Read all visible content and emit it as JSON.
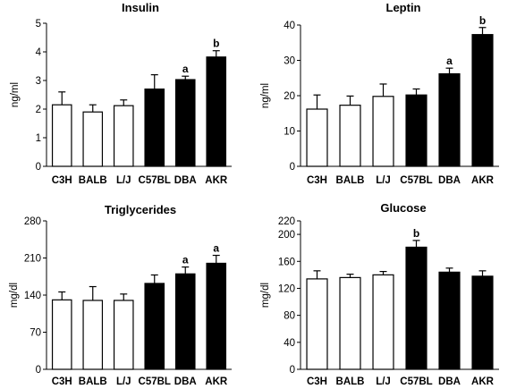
{
  "chart_data": [
    {
      "type": "bar",
      "title": "Insulin",
      "ylabel": "ng/ml",
      "ylim": [
        0,
        5
      ],
      "yticks": [
        "0",
        "1",
        "2",
        "3",
        "4",
        "5"
      ],
      "categories": [
        "C3H",
        "BALB",
        "L/J",
        "C57BL",
        "DBA",
        "AKR"
      ],
      "values": [
        2.15,
        1.9,
        2.12,
        2.7,
        3.03,
        3.82
      ],
      "errors": [
        0.45,
        0.25,
        0.2,
        0.5,
        0.12,
        0.22
      ],
      "fills": [
        "#ffffff",
        "#ffffff",
        "#ffffff",
        "#000000",
        "#000000",
        "#000000"
      ],
      "annotations": [
        "",
        "",
        "",
        "",
        "a",
        "b"
      ]
    },
    {
      "type": "bar",
      "title": "Leptin",
      "ylabel": "ng/ml",
      "ylim": [
        0,
        40
      ],
      "yticks": [
        "0",
        "10",
        "20",
        "30",
        "40"
      ],
      "categories": [
        "C3H",
        "BALB",
        "L/J",
        "C57BL",
        "DBA",
        "AKR"
      ],
      "values": [
        16.2,
        17.3,
        19.8,
        20.2,
        26.2,
        37.3
      ],
      "errors": [
        4.0,
        2.6,
        3.5,
        1.7,
        1.6,
        2.0
      ],
      "fills": [
        "#ffffff",
        "#ffffff",
        "#ffffff",
        "#000000",
        "#000000",
        "#000000"
      ],
      "annotations": [
        "",
        "",
        "",
        "",
        "a",
        "b"
      ]
    },
    {
      "type": "bar",
      "title": "Triglycerides",
      "ylabel": "mg/dl",
      "ylim": [
        0,
        280
      ],
      "yticks": [
        "0",
        "70",
        "140",
        "210",
        "280"
      ],
      "categories": [
        "C3H",
        "BALB",
        "L/J",
        "C57BL",
        "DBA",
        "AKR"
      ],
      "values": [
        131,
        130,
        130,
        162,
        180,
        200
      ],
      "errors": [
        15,
        26,
        12,
        16,
        13,
        15
      ],
      "fills": [
        "#ffffff",
        "#ffffff",
        "#ffffff",
        "#000000",
        "#000000",
        "#000000"
      ],
      "annotations": [
        "",
        "",
        "",
        "",
        "a",
        "a"
      ]
    },
    {
      "type": "bar",
      "title": "Glucose",
      "ylabel": "mg/dl",
      "ylim": [
        0,
        220
      ],
      "yticks": [
        "0",
        "40",
        "80",
        "120",
        "160",
        "200",
        "220"
      ],
      "categories": [
        "C3H",
        "BALB",
        "L/J",
        "C57BL",
        "DBA",
        "AKR"
      ],
      "values": [
        134,
        136,
        140,
        181,
        144,
        138
      ],
      "errors": [
        12,
        5,
        5,
        10,
        6,
        8
      ],
      "fills": [
        "#ffffff",
        "#ffffff",
        "#ffffff",
        "#000000",
        "#000000",
        "#000000"
      ],
      "annotations": [
        "",
        "",
        "",
        "b",
        "",
        ""
      ]
    }
  ]
}
